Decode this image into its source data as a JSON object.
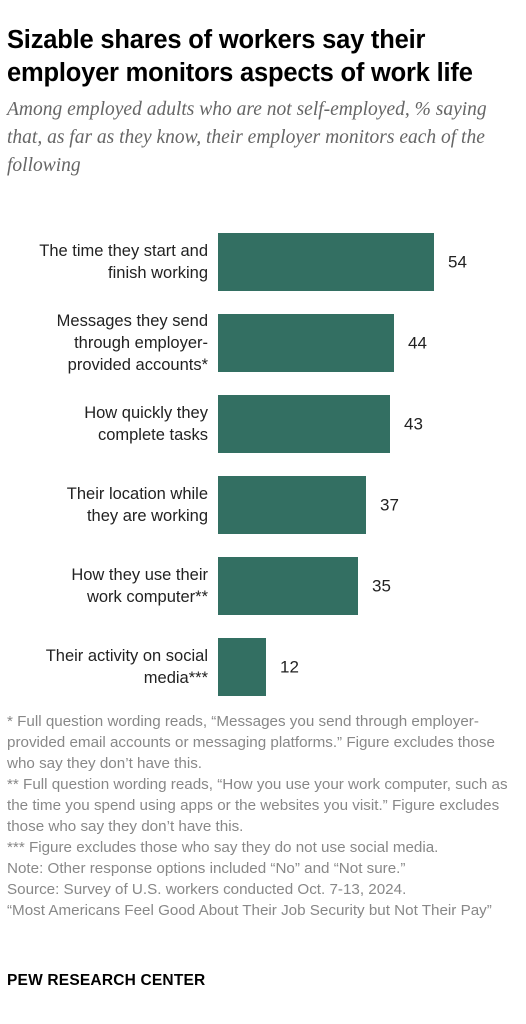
{
  "title": "Sizable shares of workers say their employer monitors aspects of work life",
  "subtitle": "Among employed adults who are not self-employed, % saying that, as far as they know, their employer monitors each of the following",
  "colors": {
    "bar": "#336f62",
    "label": "#222222",
    "value": "#222222"
  },
  "chart_data": {
    "type": "bar",
    "orientation": "horizontal",
    "title": "",
    "xlabel": "",
    "ylabel": "",
    "xlim": [
      0,
      100
    ],
    "grid": false,
    "categories": [
      [
        "The time they start and",
        "finish working"
      ],
      [
        "Messages they send",
        "through employer-",
        "provided accounts*"
      ],
      [
        "How quickly they",
        "complete tasks"
      ],
      [
        "Their location while",
        "they are working"
      ],
      [
        "How they use their",
        "work computer**"
      ],
      [
        "Their activity on social",
        "media***"
      ]
    ],
    "values": [
      54,
      44,
      43,
      37,
      35,
      12
    ]
  },
  "notes": [
    "* Full question wording reads, “Messages you send through employer-provided email accounts or messaging platforms.” Figure excludes those who say they don’t have this.",
    "** Full question wording reads, “How you use your work computer, such as the time you spend using apps or the websites you visit.” Figure excludes those who say they don’t have this.",
    "*** Figure excludes those who say they do not use social media.",
    "Note: Other response options included “No” and “Not sure.”",
    "Source: Survey of U.S. workers conducted Oct. 7-13, 2024.",
    "“Most Americans Feel Good About Their Job Security but Not Their Pay”"
  ],
  "brand": "PEW RESEARCH CENTER"
}
